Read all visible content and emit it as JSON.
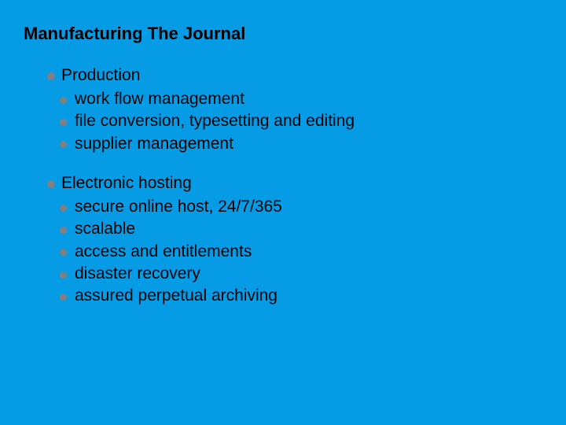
{
  "background_color": "#069be5",
  "text_color": "#000000",
  "bullet_color": "#808080",
  "font_family": "Arial",
  "title_fontsize": 22,
  "body_fontsize": 21,
  "title": "Manufacturing The Journal",
  "sections": [
    {
      "heading": "Production",
      "items": [
        "work flow management",
        "file conversion, typesetting and editing",
        "supplier management"
      ]
    },
    {
      "heading": "Electronic hosting",
      "items": [
        "secure online host, 24/7/365",
        "scalable",
        "access and entitlements",
        "disaster recovery",
        "assured perpetual archiving"
      ]
    }
  ]
}
